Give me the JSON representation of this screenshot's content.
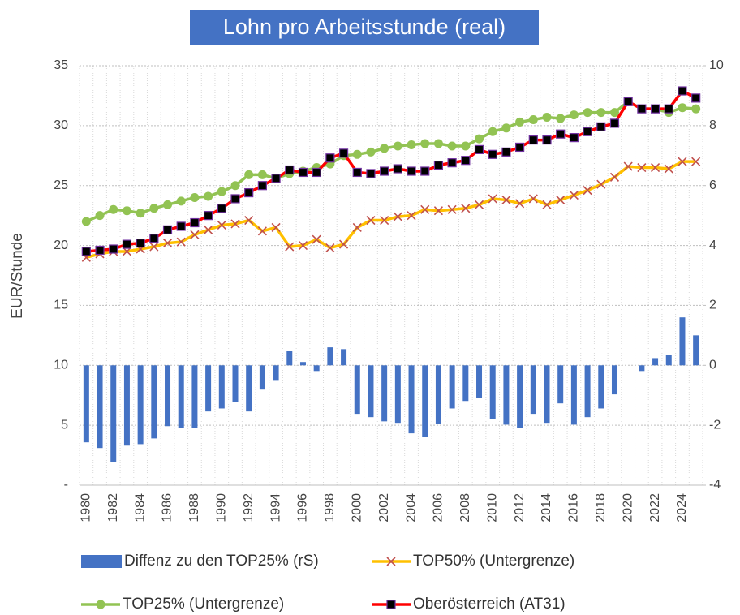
{
  "chart_data": {
    "type": "combo",
    "title": "Lohn pro Arbeitsstunde (real)",
    "y_label": "EUR/Stunde",
    "categories": [
      "1980",
      null,
      "1982",
      null,
      "1984",
      null,
      "1986",
      null,
      "1988",
      null,
      "1990",
      null,
      "1992",
      null,
      "1994",
      null,
      "1996",
      null,
      "1998",
      null,
      "2000",
      null,
      "2002",
      null,
      "2004",
      null,
      "2006",
      null,
      "2008",
      null,
      "2010",
      null,
      "2012",
      null,
      "2014",
      null,
      "2016",
      null,
      "2018",
      null,
      "2020",
      null,
      "2022",
      null,
      "2024",
      null
    ],
    "ylim": [
      0,
      35
    ],
    "yticks": [
      {
        "value": 0,
        "label": "-"
      },
      5,
      10,
      15,
      20,
      25,
      30,
      35
    ],
    "y2lim": [
      -4,
      10
    ],
    "y2ticks": [
      -4,
      -2,
      0,
      2,
      4,
      6,
      8,
      10
    ],
    "grid": true,
    "legend": "bottom",
    "series": [
      {
        "name": "Diffenz zu den TOP25% (rS)",
        "type": "bar",
        "axis": "y2",
        "color": "#4472c4",
        "values": [
          -2.57,
          -2.76,
          -3.22,
          -2.68,
          -2.63,
          -2.44,
          -2.03,
          -2.09,
          -2.09,
          -1.54,
          -1.44,
          -1.22,
          -1.54,
          -0.81,
          -0.49,
          0.49,
          0.11,
          -0.19,
          0.6,
          0.54,
          -1.62,
          -1.73,
          -1.87,
          -1.92,
          -2.27,
          -2.38,
          -1.95,
          -1.44,
          -1.19,
          -1.08,
          -1.79,
          -1.98,
          -2.09,
          -1.62,
          -1.92,
          -1.27,
          -1.98,
          -1.73,
          -1.44,
          -0.97,
          0,
          -0.19,
          0.24,
          0.35,
          1.6,
          1.0
        ]
      },
      {
        "name": "TOP50% (Untergrenze)",
        "type": "line",
        "color": "#ffc000",
        "marker": "x",
        "marker_color": "#c0504d",
        "values": [
          19.0,
          19.3,
          19.5,
          19.5,
          19.7,
          19.9,
          20.2,
          20.3,
          20.9,
          21.3,
          21.7,
          21.8,
          22.1,
          21.2,
          21.5,
          19.9,
          20.0,
          20.5,
          19.8,
          20.1,
          21.5,
          22.1,
          22.1,
          22.4,
          22.5,
          23.0,
          22.9,
          23.0,
          23.1,
          23.4,
          23.9,
          23.8,
          23.5,
          23.9,
          23.4,
          23.8,
          24.2,
          24.6,
          25.1,
          25.7,
          26.6,
          26.5,
          26.5,
          26.4,
          27.0,
          27.0
        ]
      },
      {
        "name": "TOP25% (Untergrenze)",
        "type": "line",
        "color": "#92c353",
        "marker": "circle",
        "marker_color": "#92c353",
        "values": [
          22.0,
          22.5,
          23.0,
          22.9,
          22.7,
          23.1,
          23.4,
          23.7,
          24.0,
          24.1,
          24.5,
          25.0,
          25.9,
          25.9,
          25.6,
          26.0,
          26.2,
          26.5,
          26.8,
          27.5,
          27.6,
          27.8,
          28.1,
          28.3,
          28.4,
          28.5,
          28.5,
          28.3,
          28.3,
          28.9,
          29.5,
          29.8,
          30.3,
          30.5,
          30.7,
          30.6,
          30.9,
          31.1,
          31.1,
          31.1,
          32.0,
          31.4,
          31.4,
          31.1,
          31.5,
          31.4
        ]
      },
      {
        "name": "Oberösterreich (AT31)",
        "type": "line",
        "color": "#ff0000",
        "marker": "square",
        "marker_color": "#000000",
        "values": [
          19.5,
          19.6,
          19.7,
          20.1,
          20.2,
          20.6,
          21.3,
          21.6,
          21.9,
          22.5,
          23.1,
          23.9,
          24.4,
          25.0,
          25.6,
          26.3,
          26.1,
          26.1,
          27.3,
          27.7,
          26.1,
          26.0,
          26.2,
          26.4,
          26.2,
          26.2,
          26.7,
          26.9,
          27.1,
          28.0,
          27.6,
          27.8,
          28.2,
          28.8,
          28.8,
          29.3,
          29.0,
          29.5,
          29.9,
          30.2,
          32.0,
          31.4,
          31.4,
          31.4,
          32.9,
          32.3
        ]
      }
    ]
  }
}
